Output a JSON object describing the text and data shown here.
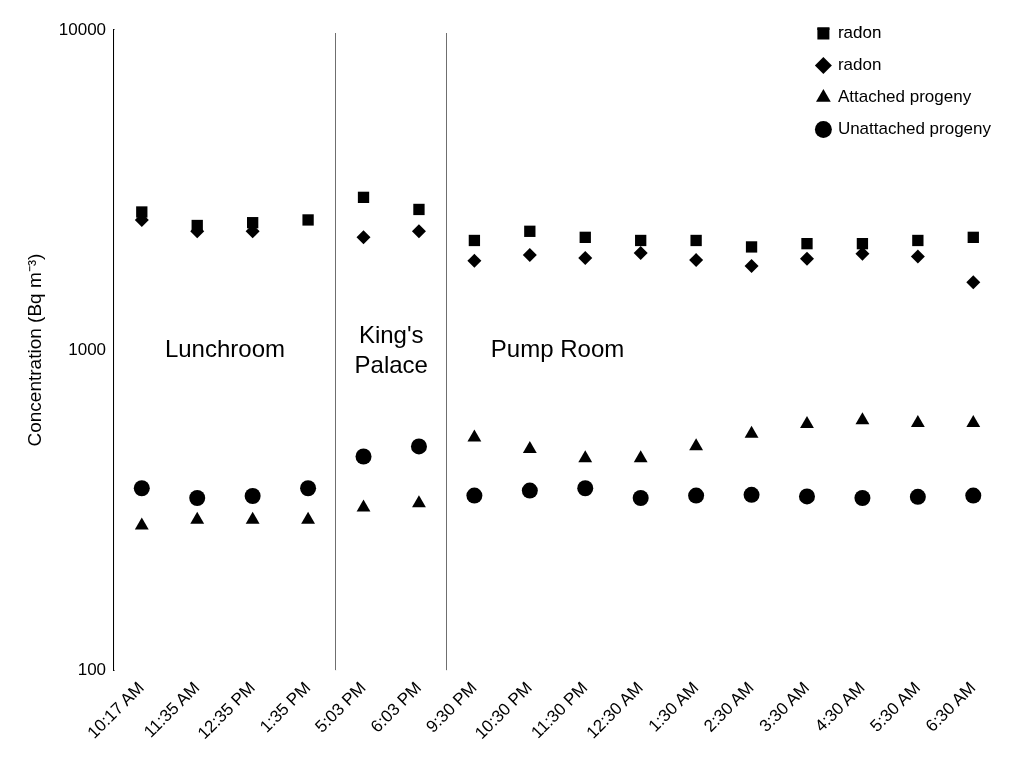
{
  "chart_data": {
    "type": "scatter",
    "ylabel": "Concentration (Bq m⁻³)",
    "categories": [
      "10:17 AM",
      "11:35 AM",
      "12:35 PM",
      "1:35 PM",
      "5:03 PM",
      "6:03 PM",
      "9:30 PM",
      "10:30 PM",
      "11:30 PM",
      "12:30 AM",
      "1:30 AM",
      "2:30 AM",
      "3:30 AM",
      "4:30 AM",
      "5:30 AM",
      "6:30 AM"
    ],
    "series": [
      {
        "name": "radon",
        "color": "#000000",
        "marker": "square",
        "values": [
          2700,
          2450,
          2500,
          2550,
          3000,
          2750,
          2200,
          2350,
          2250,
          2200,
          2200,
          2100,
          2150,
          2150,
          2200,
          2250
        ]
      },
      {
        "name": "radon",
        "color": "#000000",
        "marker": "diamond",
        "values": [
          2550,
          2350,
          2350,
          null,
          2250,
          2350,
          1900,
          1980,
          1940,
          2010,
          1910,
          1830,
          1930,
          2000,
          1960,
          1630
        ]
      },
      {
        "name": "Attached progeny",
        "color": "#000000",
        "marker": "triangle",
        "values": [
          283,
          295,
          295,
          295,
          322,
          332,
          533,
          491,
          459,
          459,
          501,
          548,
          587,
          603,
          592,
          592
        ]
      },
      {
        "name": "Unattached progeny",
        "color": "#000000",
        "marker": "circle",
        "values": [
          370,
          345,
          350,
          370,
          465,
          500,
          351,
          364,
          370,
          345,
          351,
          353,
          349,
          345,
          348,
          351
        ]
      }
    ],
    "log": "y",
    "ylim": [
      100,
      10000
    ],
    "yticks": [
      100,
      1000,
      10000
    ],
    "grid": false,
    "legend": "top right",
    "bands": [
      {
        "axis": "x",
        "from": "10:17 AM",
        "to": "1:35 PM",
        "label": "Lunchroom",
        "color": "#ffffff"
      },
      {
        "axis": "x",
        "from": "5:03 PM",
        "to": "6:03 PM",
        "label": "King's Palace",
        "color": "#ffffff"
      },
      {
        "axis": "x",
        "from": "9:30 PM",
        "to": "6:30 AM",
        "label": "Pump Room",
        "color": "#ffffff"
      }
    ]
  }
}
